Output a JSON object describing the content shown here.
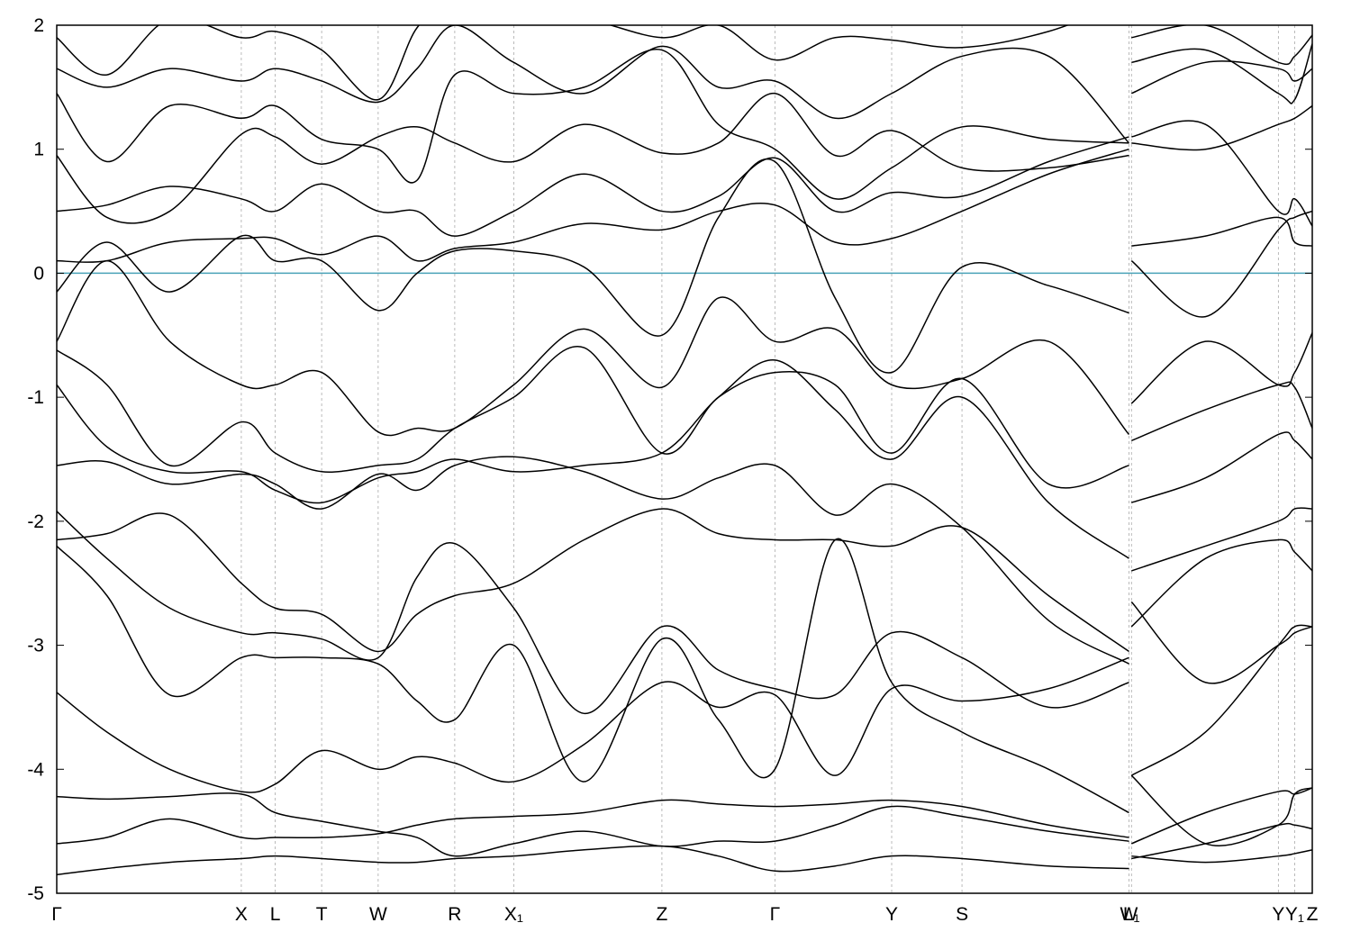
{
  "chart_data": {
    "type": "line",
    "x": [
      0,
      0.04,
      0.09,
      0.147,
      0.174,
      0.211,
      0.256,
      0.287,
      0.317,
      0.364,
      0.42,
      0.482,
      0.527,
      0.572,
      0.62,
      0.665,
      0.721,
      0.79,
      0.854,
      0.855,
      0.856,
      0.915,
      0.973,
      0.986,
      1.0
    ],
    "xlim": [
      0,
      1.0
    ],
    "xticks": [
      {
        "value": 0,
        "label": "Γ"
      },
      {
        "value": 0.147,
        "label": "X"
      },
      {
        "value": 0.174,
        "label": "L"
      },
      {
        "value": 0.211,
        "label": "T"
      },
      {
        "value": 0.256,
        "label": "W"
      },
      {
        "value": 0.317,
        "label": "R"
      },
      {
        "value": 0.364,
        "label": "X₁"
      },
      {
        "value": 0.482,
        "label": "Z"
      },
      {
        "value": 0.572,
        "label": "Γ"
      },
      {
        "value": 0.665,
        "label": "Y"
      },
      {
        "value": 0.721,
        "label": "S"
      },
      {
        "value": 0.854,
        "label": "W"
      },
      {
        "value": 0.856,
        "label": "L₁"
      },
      {
        "value": 0.973,
        "label": "Y"
      },
      {
        "value": 0.986,
        "label": "Y₁"
      },
      {
        "value": 1.0,
        "label": "Z"
      }
    ],
    "ylim": [
      -5,
      2
    ],
    "yticks": [
      -5,
      -4,
      -3,
      -2,
      -1,
      0,
      1,
      2
    ],
    "fermi_level": 0,
    "fermi_color": "#4aa3b8",
    "grid": true,
    "series": [
      {
        "color": "#000000",
        "values": [
          -4.85,
          -4.8,
          -4.75,
          -4.72,
          -4.7,
          -4.72,
          -4.75,
          -4.75,
          -4.72,
          -4.7,
          -4.65,
          -4.62,
          -4.7,
          -4.82,
          -4.78,
          -4.7,
          -4.72,
          -4.78,
          -4.8,
          null,
          -4.7,
          -4.75,
          -4.7,
          -4.68,
          -4.65
        ]
      },
      {
        "color": "#000000",
        "values": [
          -4.6,
          -4.55,
          -4.4,
          -4.55,
          -4.55,
          -4.55,
          -4.52,
          -4.45,
          -4.4,
          -4.38,
          -4.35,
          -4.25,
          -4.28,
          -4.3,
          -4.28,
          -4.25,
          -4.3,
          -4.45,
          -4.55,
          null,
          -4.72,
          -4.6,
          -4.45,
          -4.45,
          -4.48
        ]
      },
      {
        "color": "#000000",
        "values": [
          -4.22,
          -4.24,
          -4.22,
          -4.2,
          -4.35,
          -4.42,
          -4.5,
          -4.55,
          -4.7,
          -4.6,
          -4.5,
          -4.62,
          -4.58,
          -4.58,
          -4.45,
          -4.3,
          -4.38,
          -4.5,
          -4.58,
          null,
          -4.6,
          -4.35,
          -4.18,
          -4.2,
          -4.15
        ]
      },
      {
        "color": "#000000",
        "values": [
          -3.38,
          -3.7,
          -4.0,
          -4.18,
          -4.12,
          -3.85,
          -4.0,
          -3.9,
          -3.95,
          -4.1,
          -3.8,
          -3.3,
          -3.5,
          -3.4,
          -4.05,
          -3.35,
          -3.45,
          -3.35,
          -3.1,
          null,
          -4.05,
          -3.7,
          -3.0,
          -2.85,
          -2.85
        ]
      },
      {
        "color": "#000000",
        "values": [
          -2.15,
          -2.1,
          -1.95,
          -2.5,
          -2.7,
          -2.75,
          -3.05,
          -2.75,
          -2.6,
          -2.5,
          -2.15,
          -1.9,
          -2.1,
          -2.15,
          -2.15,
          -2.2,
          -2.05,
          -2.6,
          -3.05,
          null,
          -2.85,
          -2.3,
          -2.15,
          -2.25,
          -2.4
        ]
      },
      {
        "color": "#000000",
        "values": [
          -1.55,
          -1.52,
          -1.7,
          -1.62,
          -1.7,
          -1.9,
          -1.62,
          -1.75,
          -1.55,
          -1.48,
          -1.6,
          -1.82,
          -1.65,
          -1.55,
          -1.95,
          -1.7,
          -2.05,
          -2.8,
          -3.15,
          null,
          -2.4,
          -2.2,
          -2.0,
          -1.9,
          -1.9
        ]
      },
      {
        "color": "#000000",
        "values": [
          -0.9,
          -1.4,
          -1.6,
          -1.6,
          -1.75,
          -1.85,
          -1.65,
          -1.6,
          -1.5,
          -1.6,
          -1.55,
          -1.45,
          -1.0,
          -0.7,
          -1.1,
          -1.5,
          -1.0,
          -1.85,
          -2.3,
          null,
          -1.85,
          -1.65,
          -1.3,
          -1.35,
          -1.5
        ]
      },
      {
        "color": "#000000",
        "values": [
          -0.62,
          -0.9,
          -1.55,
          -1.2,
          -1.45,
          -1.6,
          -1.55,
          -1.5,
          -1.25,
          -1.0,
          -0.6,
          -1.45,
          -1.0,
          -0.8,
          -0.9,
          -1.45,
          -0.85,
          -1.7,
          -1.55,
          null,
          -1.35,
          -1.1,
          -0.9,
          -0.92,
          -1.25
        ]
      },
      {
        "color": "#000000",
        "values": [
          -0.55,
          0.1,
          -0.55,
          -0.9,
          -0.9,
          -0.8,
          -1.28,
          -1.25,
          -1.25,
          -0.9,
          -0.45,
          -0.92,
          -0.2,
          -0.55,
          -0.45,
          -0.9,
          -0.85,
          -0.55,
          -1.3,
          null,
          -1.05,
          -0.55,
          -0.9,
          -0.8,
          -0.48
        ]
      },
      {
        "color": "#000000",
        "values": [
          -0.15,
          0.25,
          -0.15,
          0.3,
          0.1,
          0.1,
          -0.3,
          0.0,
          0.18,
          0.18,
          0.05,
          -0.5,
          0.45,
          0.9,
          -0.2,
          -0.8,
          0.05,
          -0.1,
          -0.32,
          null,
          0.1,
          -0.35,
          0.35,
          0.45,
          0.5
        ]
      },
      {
        "color": "#000000",
        "values": [
          0.1,
          0.1,
          0.25,
          0.28,
          0.28,
          0.15,
          0.3,
          0.1,
          0.2,
          0.25,
          0.4,
          0.35,
          0.5,
          0.55,
          0.25,
          0.28,
          0.5,
          0.8,
          1.0,
          null,
          0.22,
          0.3,
          0.45,
          0.25,
          0.22
        ]
      },
      {
        "color": "#000000",
        "values": [
          0.5,
          0.55,
          0.7,
          0.6,
          0.5,
          0.72,
          0.5,
          0.5,
          0.3,
          0.5,
          0.8,
          0.5,
          0.62,
          0.93,
          0.5,
          0.65,
          0.62,
          0.9,
          1.1,
          null,
          1.1,
          1.2,
          0.5,
          0.6,
          0.38
        ]
      },
      {
        "color": "#000000",
        "values": [
          0.95,
          0.45,
          0.5,
          1.12,
          1.1,
          0.88,
          1.1,
          1.18,
          1.05,
          0.9,
          1.2,
          0.97,
          1.05,
          1.45,
          0.95,
          1.15,
          0.85,
          0.85,
          0.95,
          null,
          1.05,
          1.0,
          1.2,
          1.25,
          1.35
        ]
      },
      {
        "color": "#000000",
        "values": [
          1.45,
          0.9,
          1.35,
          1.25,
          1.35,
          1.08,
          1.0,
          0.75,
          1.6,
          1.45,
          1.5,
          1.8,
          1.2,
          1.0,
          0.6,
          0.85,
          1.18,
          1.08,
          1.05,
          null,
          1.45,
          1.7,
          1.65,
          1.55,
          1.65
        ]
      },
      {
        "color": "#000000",
        "values": [
          1.65,
          1.5,
          1.65,
          1.55,
          1.65,
          1.55,
          1.38,
          1.65,
          2.0,
          1.7,
          1.45,
          1.83,
          1.5,
          1.55,
          1.25,
          1.45,
          1.75,
          1.75,
          1.05,
          null,
          1.7,
          1.8,
          1.45,
          1.4,
          1.85
        ]
      },
      {
        "color": "#000000",
        "values": [
          1.9,
          1.6,
          2.05,
          1.9,
          1.95,
          1.8,
          1.4,
          1.98,
          2.2,
          2.05,
          2.05,
          1.9,
          2.0,
          1.72,
          1.9,
          1.88,
          1.82,
          1.95,
          2.2,
          null,
          1.9,
          2.0,
          1.7,
          1.75,
          1.92
        ]
      },
      {
        "color": "#000000",
        "values": [
          -1.92,
          -2.3,
          -2.7,
          -2.9,
          -2.9,
          -2.95,
          -3.1,
          -2.45,
          -2.18,
          -2.7,
          -3.55,
          -2.85,
          -3.2,
          -3.35,
          -3.4,
          -2.9,
          -3.1,
          -3.5,
          -3.3,
          null,
          -2.65,
          -3.3,
          -3.0,
          -2.9,
          -2.85
        ]
      },
      {
        "color": "#000000",
        "values": [
          -2.2,
          -2.6,
          -3.4,
          -3.1,
          -3.1,
          -3.1,
          -3.15,
          -3.45,
          -3.6,
          -3.0,
          -4.1,
          -2.95,
          -3.6,
          -4.0,
          -2.15,
          -3.3,
          -3.7,
          -4.0,
          -4.35,
          null,
          -4.05,
          -4.6,
          -4.45,
          -4.2,
          -4.15
        ]
      }
    ]
  }
}
